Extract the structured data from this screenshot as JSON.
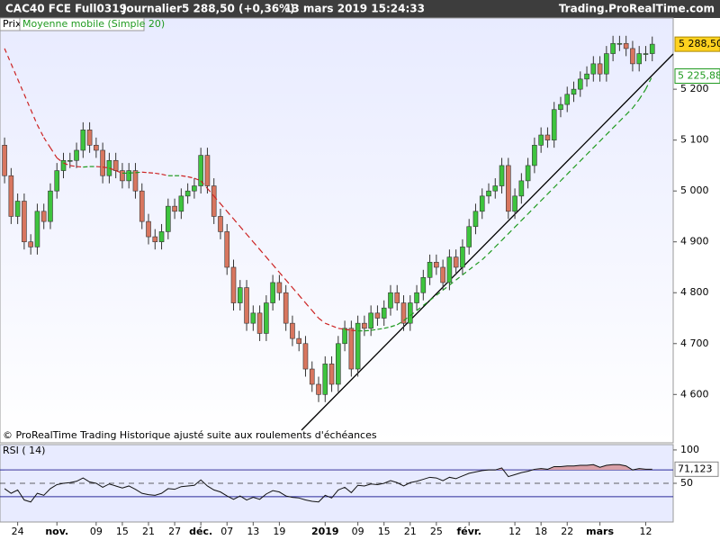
{
  "header": {
    "symbol": "CAC40 FCE Full0319",
    "period": "Journalier",
    "price": "5 288,50 (+0,36%)",
    "datetime": "13 mars 2019 15:24:33",
    "site": "Trading.ProRealTime.com"
  },
  "chart_data": [
    {
      "type": "candlestick",
      "name": "Prix",
      "note": "© ProRealTime Trading  Historique ajusté suite aux roulements d'échéances",
      "open": [
        5090,
        5030,
        4950,
        4980,
        4900,
        4890,
        4960,
        4940,
        5000,
        5040,
        5060,
        5060,
        5080,
        5120,
        5090,
        5080,
        5030,
        5060,
        5040,
        5020,
        5040,
        5000,
        4940,
        4910,
        4900,
        4920,
        4970,
        4960,
        4990,
        5000,
        5010,
        5070,
        5010,
        4950,
        4920,
        4850,
        4780,
        4810,
        4740,
        4760,
        4720,
        4780,
        4820,
        4800,
        4740,
        4710,
        4700,
        4650,
        4620,
        4600,
        4660,
        4620,
        4700,
        4730,
        4650,
        4740,
        4730,
        4760,
        4750,
        4770,
        4800,
        4780,
        4740,
        4780,
        4800,
        4830,
        4860,
        4850,
        4820,
        4870,
        4850,
        4890,
        4930,
        4960,
        4990,
        5000,
        5010,
        5050,
        4960,
        4990,
        5020,
        5050,
        5090,
        5110,
        5100,
        5160,
        5170,
        5190,
        5200,
        5220,
        5230,
        5250,
        5230,
        5270,
        5290,
        5290,
        5280,
        5250,
        5270,
        5270
      ],
      "high": [
        5105,
        5045,
        4995,
        4995,
        4915,
        4975,
        4975,
        5015,
        5055,
        5075,
        5075,
        5095,
        5135,
        5135,
        5105,
        5095,
        5075,
        5075,
        5055,
        5055,
        5055,
        5015,
        4955,
        4925,
        4935,
        4985,
        4985,
        5005,
        5015,
        5025,
        5085,
        5085,
        5025,
        4965,
        4935,
        4865,
        4825,
        4825,
        4775,
        4775,
        4795,
        4835,
        4835,
        4815,
        4755,
        4725,
        4715,
        4665,
        4635,
        4675,
        4675,
        4715,
        4745,
        4745,
        4755,
        4755,
        4775,
        4775,
        4785,
        4815,
        4815,
        4795,
        4795,
        4815,
        4845,
        4875,
        4875,
        4865,
        4885,
        4885,
        4905,
        4945,
        4975,
        5005,
        5015,
        5025,
        5065,
        5065,
        5005,
        5035,
        5065,
        5105,
        5125,
        5125,
        5175,
        5185,
        5205,
        5215,
        5235,
        5245,
        5265,
        5265,
        5285,
        5305,
        5305,
        5305,
        5295,
        5285,
        5285,
        5303.5
      ],
      "low": [
        5015,
        4935,
        4935,
        4885,
        4875,
        4875,
        4925,
        4925,
        4985,
        5025,
        5045,
        5045,
        5065,
        5075,
        5065,
        5015,
        5015,
        5025,
        5005,
        5005,
        4985,
        4925,
        4895,
        4885,
        4885,
        4905,
        4945,
        4945,
        4975,
        4985,
        4995,
        4995,
        4935,
        4905,
        4835,
        4765,
        4765,
        4725,
        4725,
        4705,
        4705,
        4765,
        4785,
        4725,
        4695,
        4685,
        4635,
        4605,
        4585,
        4585,
        4605,
        4605,
        4685,
        4635,
        4635,
        4715,
        4715,
        4735,
        4735,
        4755,
        4765,
        4725,
        4725,
        4765,
        4785,
        4815,
        4835,
        4805,
        4805,
        4835,
        4835,
        4875,
        4915,
        4945,
        4975,
        4985,
        4995,
        4945,
        4945,
        4975,
        5005,
        5035,
        5075,
        5085,
        5085,
        5145,
        5155,
        5175,
        5185,
        5205,
        5215,
        5215,
        5215,
        5255,
        5275,
        5265,
        5235,
        5235,
        5255,
        5255
      ],
      "close": [
        5030,
        4950,
        4980,
        4900,
        4890,
        4960,
        4940,
        5000,
        5040,
        5060,
        5060,
        5080,
        5120,
        5090,
        5080,
        5030,
        5060,
        5040,
        5020,
        5040,
        5000,
        4940,
        4910,
        4900,
        4920,
        4970,
        4960,
        4990,
        5000,
        5010,
        5070,
        5010,
        4950,
        4920,
        4850,
        4780,
        4810,
        4740,
        4760,
        4720,
        4780,
        4820,
        4800,
        4740,
        4710,
        4700,
        4650,
        4620,
        4600,
        4660,
        4620,
        4700,
        4730,
        4650,
        4740,
        4730,
        4760,
        4750,
        4770,
        4800,
        4780,
        4740,
        4780,
        4800,
        4830,
        4860,
        4850,
        4820,
        4870,
        4850,
        4890,
        4930,
        4960,
        4990,
        5000,
        5010,
        5050,
        4960,
        4990,
        5020,
        5050,
        5090,
        5110,
        5100,
        5160,
        5170,
        5190,
        5200,
        5220,
        5230,
        5250,
        5230,
        5270,
        5290,
        5290,
        5280,
        5250,
        5270,
        5270,
        5288.5
      ],
      "colors": {
        "up": "#3ec43e",
        "down": "#d8765f"
      },
      "ylim": [
        4505,
        5340
      ],
      "yticks": [
        {
          "value": 4600,
          "label": "4 600"
        },
        {
          "value": 4700,
          "label": "4 700"
        },
        {
          "value": 4800,
          "label": "4 800"
        },
        {
          "value": 4900,
          "label": "4 900"
        },
        {
          "value": 5000,
          "label": "5 000"
        },
        {
          "value": 5100,
          "label": "5 100"
        },
        {
          "value": 5200,
          "label": "5 200"
        }
      ],
      "last_price": {
        "value": 5288.5,
        "label": "5 288,50"
      },
      "overlay": {
        "name": "Moyenne mobile (Simple 20)",
        "colors": {
          "up": "#1f9a1f",
          "down": "#cc2222"
        },
        "values": [
          5280,
          5250,
          5220,
          5190,
          5160,
          5130,
          5105,
          5085,
          5065,
          5055,
          5050,
          5048,
          5047,
          5048,
          5048,
          5047,
          5045,
          5040,
          5035,
          5035,
          5036,
          5037,
          5036,
          5035,
          5033,
          5030,
          5030,
          5030,
          5028,
          5025,
          5020,
          5005,
          4990,
          4975,
          4960,
          4945,
          4930,
          4915,
          4900,
          4885,
          4870,
          4855,
          4840,
          4825,
          4810,
          4795,
          4780,
          4765,
          4750,
          4740,
          4735,
          4730,
          4728,
          4726,
          4725,
          4725,
          4726,
          4728,
          4730,
          4733,
          4737,
          4745,
          4755,
          4765,
          4775,
          4785,
          4795,
          4805,
          4815,
          4825,
          4835,
          4845,
          4855,
          4865,
          4877,
          4890,
          4903,
          4916,
          4929,
          4942,
          4955,
          4968,
          4981,
          4994,
          5007,
          5020,
          5033,
          5046,
          5059,
          5072,
          5085,
          5098,
          5111,
          5124,
          5137,
          5150,
          5163,
          5180,
          5200,
          5225.88
        ],
        "last": {
          "value": 5225.88,
          "label": "5 225,88"
        }
      },
      "xlim": [
        -0.7,
        102.2
      ],
      "xticks": [
        {
          "value": 2,
          "label": "24"
        },
        {
          "value": 8,
          "label": "nov."
        },
        {
          "value": 14,
          "label": "09"
        },
        {
          "value": 18,
          "label": "15"
        },
        {
          "value": 22,
          "label": "21"
        },
        {
          "value": 26,
          "label": "27"
        },
        {
          "value": 30,
          "label": "déc."
        },
        {
          "value": 34,
          "label": "07"
        },
        {
          "value": 38,
          "label": "13"
        },
        {
          "value": 42,
          "label": "19"
        },
        {
          "value": 49,
          "label": "2019"
        },
        {
          "value": 54,
          "label": "09"
        },
        {
          "value": 58,
          "label": "15"
        },
        {
          "value": 62,
          "label": "21"
        },
        {
          "value": 66,
          "label": "25"
        },
        {
          "value": 71,
          "label": "févr."
        },
        {
          "value": 78,
          "label": "12"
        },
        {
          "value": 82,
          "label": "18"
        },
        {
          "value": 86,
          "label": "22"
        },
        {
          "value": 91,
          "label": "mars"
        },
        {
          "value": 98,
          "label": "12"
        }
      ]
    },
    {
      "type": "line",
      "name": "RSI ( 14)",
      "color": "#111111",
      "fill": "#d9a0a8",
      "values": [
        42,
        35,
        40,
        25,
        22,
        35,
        32,
        42,
        48,
        50,
        51,
        53,
        58,
        52,
        50,
        44,
        49,
        46,
        43,
        46,
        41,
        35,
        33,
        32,
        35,
        42,
        41,
        45,
        46,
        47,
        55,
        46,
        40,
        37,
        31,
        26,
        31,
        25,
        29,
        26,
        34,
        39,
        37,
        31,
        29,
        28,
        25,
        23,
        22,
        32,
        28,
        40,
        44,
        36,
        47,
        46,
        49,
        48,
        50,
        54,
        51,
        46,
        51,
        53,
        56,
        59,
        58,
        54,
        59,
        57,
        61,
        65,
        67,
        69,
        70,
        70,
        73,
        60,
        63,
        66,
        68,
        71,
        72,
        71,
        75,
        75,
        76,
        76,
        77,
        77,
        78,
        74,
        77,
        78,
        78,
        76,
        70,
        72,
        71,
        71.123
      ],
      "ylim": [
        -8,
        108
      ],
      "yticks": [
        100,
        50
      ],
      "levels": [
        30,
        70
      ],
      "last": {
        "value": 71.123,
        "label": "71,123"
      }
    }
  ]
}
